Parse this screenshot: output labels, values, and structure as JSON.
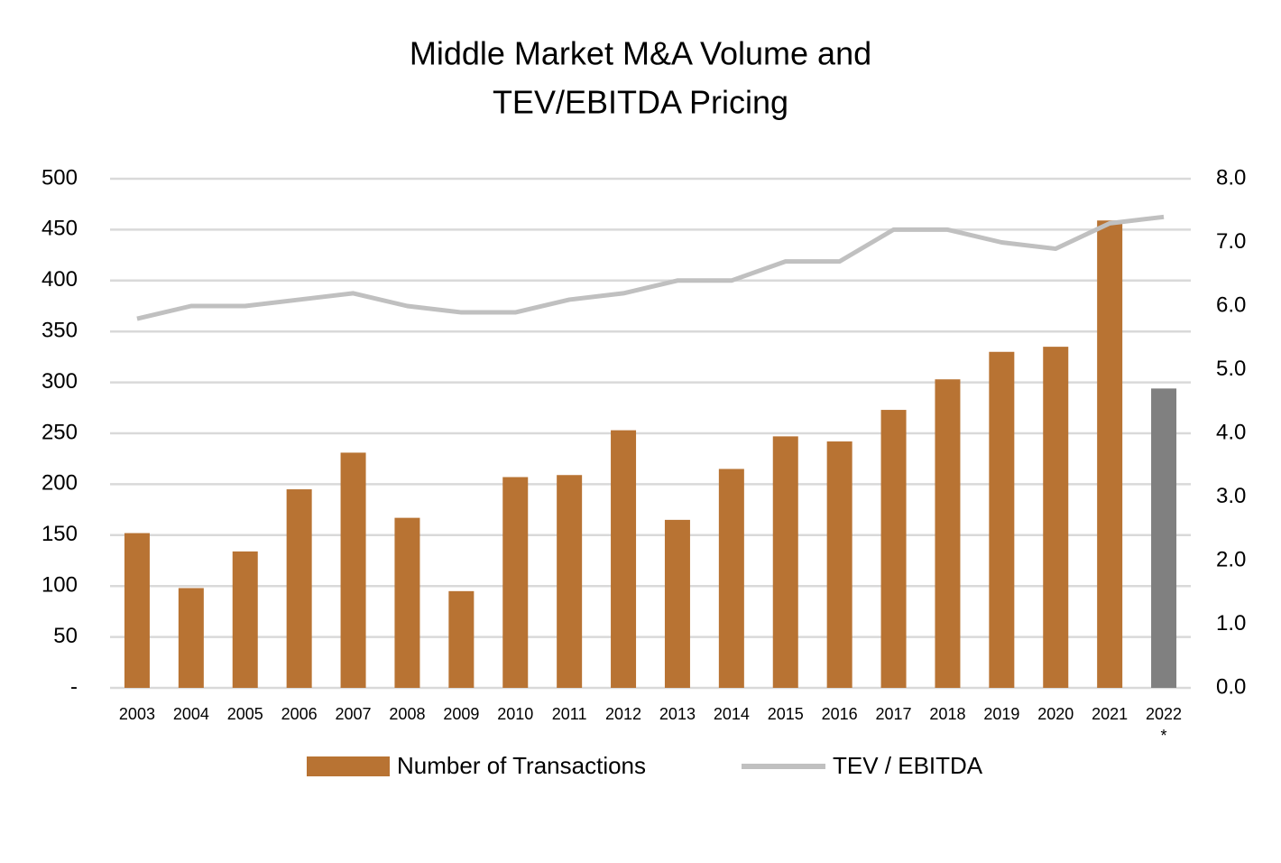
{
  "chart_data": {
    "type": "bar-line",
    "title": [
      "Middle Market M&A Volume and",
      "TEV/EBITDA Pricing"
    ],
    "categories": [
      "2003",
      "2004",
      "2005",
      "2006",
      "2007",
      "2008",
      "2009",
      "2010",
      "2011",
      "2012",
      "2013",
      "2014",
      "2015",
      "2016",
      "2017",
      "2018",
      "2019",
      "2020",
      "2021",
      "2022*"
    ],
    "series": [
      {
        "name": "Number of Transactions",
        "type": "bar",
        "color": "#b87333",
        "colors": [
          "#b87333",
          "#b87333",
          "#b87333",
          "#b87333",
          "#b87333",
          "#b87333",
          "#b87333",
          "#b87333",
          "#b87333",
          "#b87333",
          "#b87333",
          "#b87333",
          "#b87333",
          "#b87333",
          "#b87333",
          "#b87333",
          "#b87333",
          "#b87333",
          "#b87333",
          "#808080"
        ],
        "values": [
          152,
          98,
          134,
          195,
          231,
          167,
          95,
          207,
          209,
          253,
          165,
          215,
          247,
          242,
          273,
          303,
          330,
          335,
          459,
          294
        ]
      },
      {
        "name": "TEV / EBITDA",
        "type": "line",
        "axis": "y2",
        "color": "#c0c0c0",
        "values": [
          5.8,
          6.0,
          6.0,
          6.1,
          6.2,
          6.0,
          5.9,
          5.9,
          6.1,
          6.2,
          6.4,
          6.4,
          6.7,
          6.7,
          7.2,
          7.2,
          7.0,
          6.9,
          7.3,
          7.4
        ]
      }
    ],
    "ylim": [
      0,
      500
    ],
    "yticks": [
      {
        "value": 0,
        "label": "-"
      },
      50,
      100,
      150,
      200,
      250,
      300,
      350,
      400,
      450,
      500
    ],
    "y2lim": [
      0,
      8
    ],
    "y2ticks": [
      {
        "value": 0,
        "label": "0.0"
      },
      {
        "value": 1,
        "label": "1.0"
      },
      {
        "value": 2,
        "label": "2.0"
      },
      {
        "value": 3,
        "label": "3.0"
      },
      {
        "value": 4,
        "label": "4.0"
      },
      {
        "value": 5,
        "label": "5.0"
      },
      {
        "value": 6,
        "label": "6.0"
      },
      {
        "value": 7,
        "label": "7.0"
      },
      {
        "value": 8,
        "label": "8.0"
      }
    ],
    "grid": true,
    "legend": "bottom"
  }
}
